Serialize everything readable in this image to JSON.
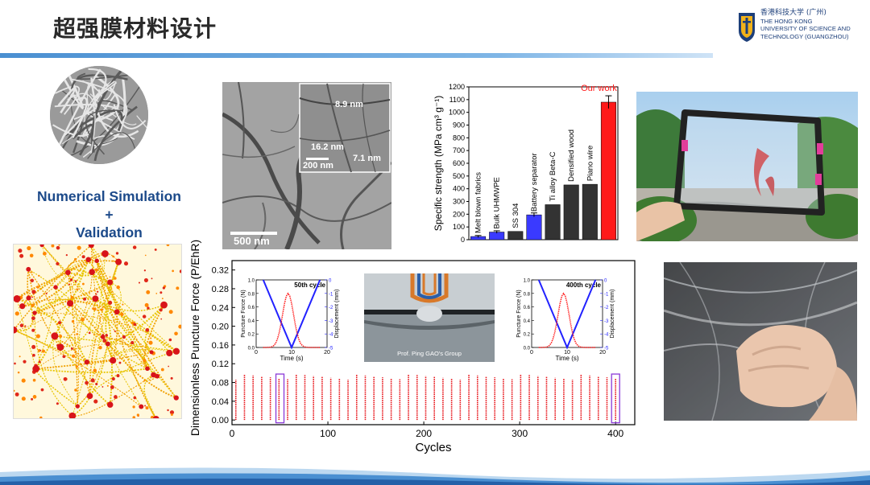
{
  "slide": {
    "title": "超强膜材料设计"
  },
  "logo": {
    "line1": "香港科技大学 (广州)",
    "line2": "THE HONG KONG",
    "line3": "UNIVERSITY OF SCIENCE AND",
    "line4": "TECHNOLOGY (GUANGZHOU)"
  },
  "simulation": {
    "label_line1": "Numerical Simulation",
    "label_line2": "+",
    "label_line3": "Validation"
  },
  "tem": {
    "scale_main": "500 nm",
    "scale_inset": "200 nm",
    "label_a": "8.9 nm",
    "label_b": "16.2 nm",
    "label_c": "7.1 nm"
  },
  "chart_data": [
    {
      "type": "bar",
      "ylabel": "Specific strength (MPa cm³ g⁻¹)",
      "ylim": [
        0,
        1200
      ],
      "yticks": [
        0,
        100,
        200,
        300,
        400,
        500,
        600,
        700,
        800,
        900,
        1000,
        1100,
        1200
      ],
      "categories": [
        "Melt blown fabrics",
        "Bulk UHMWPE",
        "SS 304",
        "Battery separator",
        "Ti alloy Beta-C",
        "Densified wood",
        "Piano wire",
        "Our work"
      ],
      "values": [
        25,
        60,
        65,
        195,
        275,
        430,
        435,
        1080
      ],
      "errors": [
        8,
        10,
        0,
        15,
        0,
        0,
        0,
        50
      ],
      "colors": [
        "#3a3aff",
        "#3a3aff",
        "#333333",
        "#3a3aff",
        "#333333",
        "#333333",
        "#333333",
        "#ff1a1a"
      ],
      "annotation": "Our work"
    },
    {
      "type": "scatter",
      "xlabel": "Cycles",
      "ylabel": "Dimensionless Puncture Force (P/EhR)",
      "xlim": [
        0,
        420
      ],
      "ylim": [
        -0.01,
        0.34
      ],
      "xticks": [
        0,
        100,
        200,
        300,
        400
      ],
      "yticks": [
        "0.00",
        "0.04",
        "0.08",
        "0.12",
        "0.16",
        "0.20",
        "0.24",
        "0.28",
        "0.32"
      ],
      "cycles_start": 4,
      "cycles_step": 9,
      "cycles_end": 400,
      "peak_min": 0.086,
      "peak_max": 0.098,
      "highlight_cycles": [
        50,
        400
      ],
      "series_color": "#e8141a"
    },
    {
      "type": "line",
      "title": "50th cycle",
      "xlabel": "Time (s)",
      "ylabel_left": "Puncture Force (N)",
      "ylabel_right": "Displacement (mm)",
      "xlim": [
        0,
        20
      ],
      "xticks": [
        0,
        10,
        20
      ],
      "yticks_left": [
        0.0,
        0.2,
        0.4,
        0.6,
        0.8,
        1.0
      ],
      "yticks_right": [
        0,
        -1,
        -2,
        -3,
        -4,
        -5
      ],
      "force_peak": 0.8,
      "displacement_min": -5
    },
    {
      "type": "line",
      "title": "400th cycle",
      "xlabel": "Time (s)",
      "ylabel_left": "Puncture Force (N)",
      "ylabel_right": "Displacement (mm)",
      "xlim": [
        0,
        20
      ],
      "xticks": [
        0,
        10,
        20
      ],
      "yticks_left": [
        0.0,
        0.2,
        0.4,
        0.6,
        0.8,
        1.0
      ],
      "yticks_right": [
        0,
        -1,
        -2,
        -3,
        -4,
        -5
      ],
      "force_peak": 0.8,
      "displacement_min": -5
    }
  ],
  "inset_photo": {
    "caption": "Prof. Ping GAO's Group"
  }
}
